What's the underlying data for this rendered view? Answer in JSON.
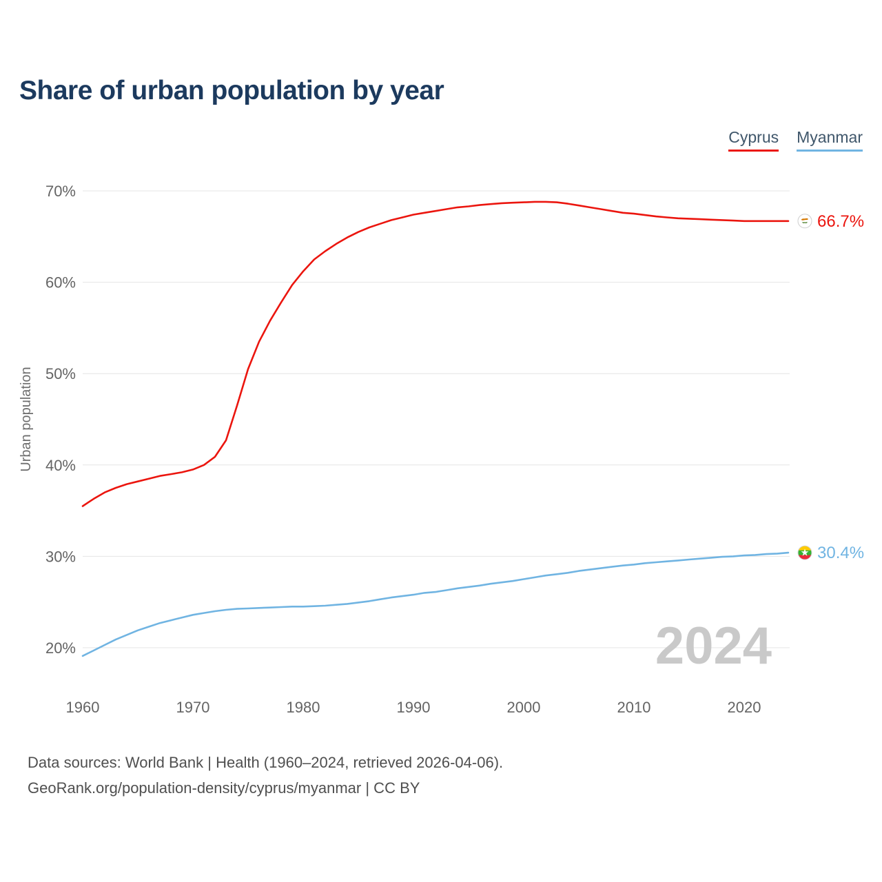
{
  "title": "Share of urban population by year",
  "legend": [
    {
      "label": "Cyprus",
      "color": "#eb150e"
    },
    {
      "label": "Myanmar",
      "color": "#70b4e2"
    }
  ],
  "watermark": "2024",
  "footer": {
    "line1": "Data sources: World Bank | Health (1960–2024, retrieved 2026-04-06).",
    "line2": "GeoRank.org/population-density/cyprus/myanmar | CC BY"
  },
  "chart_data": {
    "type": "line",
    "title": "Share of urban population by year",
    "ylabel": "Urban population",
    "xlabel": "",
    "grid": "horizontal-only",
    "legend_position": "top-right",
    "x_range": [
      1960,
      2024
    ],
    "ylim": [
      17.5,
      72
    ],
    "y_ticks": [
      20,
      30,
      40,
      50,
      60,
      70
    ],
    "x_ticks": [
      1960,
      1970,
      1980,
      1990,
      2000,
      2010,
      2020
    ],
    "x": [
      1960,
      1961,
      1962,
      1963,
      1964,
      1965,
      1966,
      1967,
      1968,
      1969,
      1970,
      1971,
      1972,
      1973,
      1974,
      1975,
      1976,
      1977,
      1978,
      1979,
      1980,
      1981,
      1982,
      1983,
      1984,
      1985,
      1986,
      1987,
      1988,
      1989,
      1990,
      1991,
      1992,
      1993,
      1994,
      1995,
      1996,
      1997,
      1998,
      1999,
      2000,
      2001,
      2002,
      2003,
      2004,
      2005,
      2006,
      2007,
      2008,
      2009,
      2010,
      2011,
      2012,
      2013,
      2014,
      2015,
      2016,
      2017,
      2018,
      2019,
      2020,
      2021,
      2022,
      2023,
      2024
    ],
    "series": [
      {
        "name": "Cyprus",
        "color": "#eb150e",
        "flag": "cyprus-flag-icon",
        "end_label": "66.7%",
        "values": [
          35.5,
          36.3,
          37.0,
          37.5,
          37.9,
          38.2,
          38.5,
          38.8,
          39.0,
          39.2,
          39.5,
          40.0,
          40.9,
          42.7,
          46.5,
          50.5,
          53.5,
          55.8,
          57.8,
          59.7,
          61.2,
          62.5,
          63.4,
          64.2,
          64.9,
          65.5,
          66.0,
          66.4,
          66.8,
          67.1,
          67.4,
          67.6,
          67.8,
          68.0,
          68.2,
          68.3,
          68.45,
          68.55,
          68.65,
          68.7,
          68.75,
          68.8,
          68.8,
          68.75,
          68.6,
          68.4,
          68.2,
          68.0,
          67.8,
          67.6,
          67.5,
          67.35,
          67.2,
          67.1,
          67.0,
          66.95,
          66.9,
          66.85,
          66.8,
          66.75,
          66.7,
          66.7,
          66.7,
          66.7,
          66.7
        ]
      },
      {
        "name": "Myanmar",
        "color": "#70b4e2",
        "flag": "myanmar-flag-icon",
        "end_label": "30.4%",
        "values": [
          19.1,
          19.7,
          20.3,
          20.9,
          21.4,
          21.9,
          22.3,
          22.7,
          23.0,
          23.3,
          23.6,
          23.8,
          24.0,
          24.15,
          24.25,
          24.3,
          24.35,
          24.4,
          24.45,
          24.5,
          24.5,
          24.55,
          24.6,
          24.7,
          24.8,
          24.95,
          25.1,
          25.3,
          25.5,
          25.65,
          25.8,
          26.0,
          26.1,
          26.3,
          26.5,
          26.65,
          26.8,
          27.0,
          27.15,
          27.3,
          27.5,
          27.7,
          27.9,
          28.05,
          28.2,
          28.4,
          28.55,
          28.7,
          28.85,
          29.0,
          29.1,
          29.25,
          29.35,
          29.45,
          29.55,
          29.65,
          29.75,
          29.85,
          29.95,
          30.0,
          30.1,
          30.15,
          30.25,
          30.3,
          30.4
        ]
      }
    ]
  }
}
